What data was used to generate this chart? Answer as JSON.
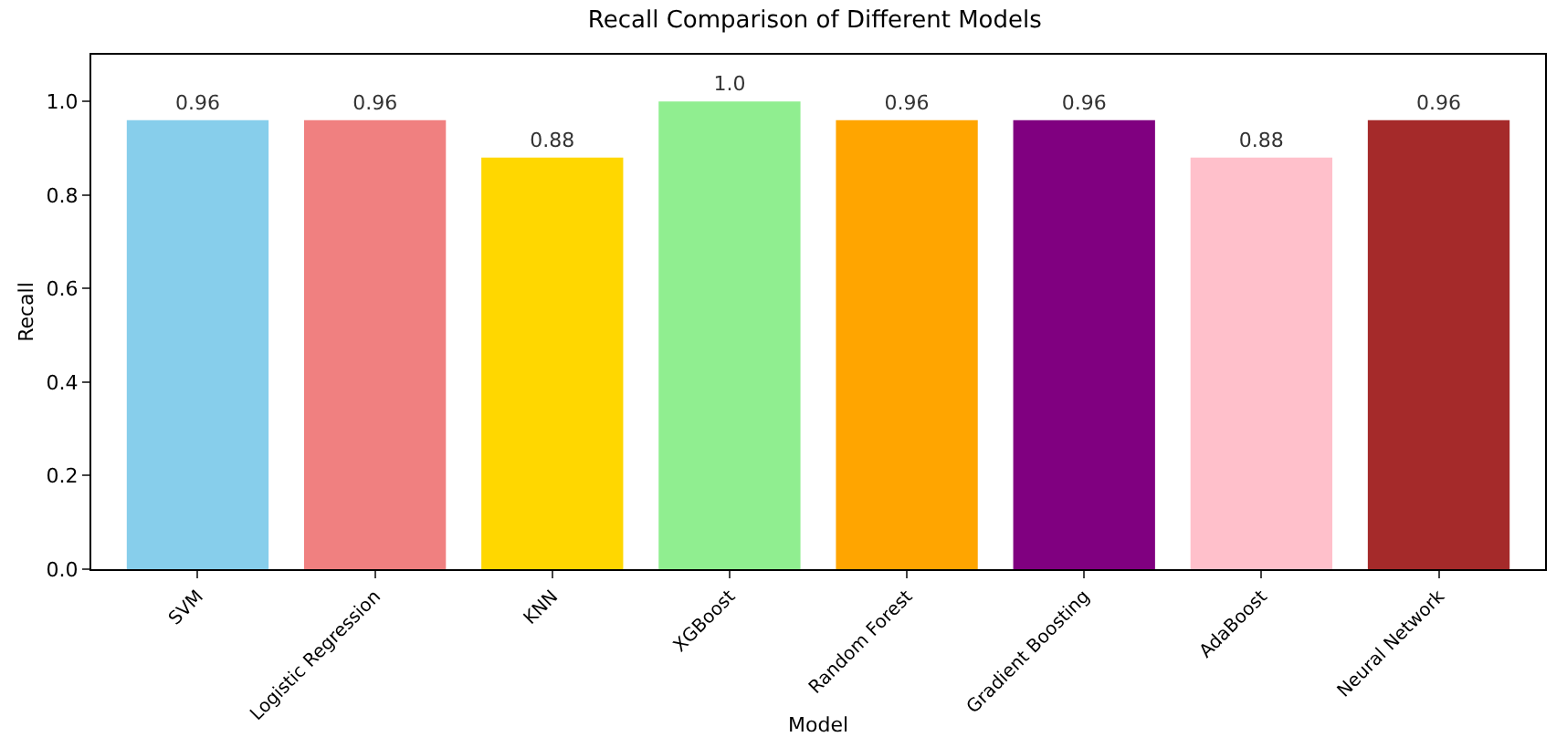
{
  "chart_data": {
    "type": "bar",
    "title": "Recall Comparison of Different Models",
    "xlabel": "Model",
    "ylabel": "Recall",
    "categories": [
      "SVM",
      "Logistic Regression",
      "KNN",
      "XGBoost",
      "Random Forest",
      "Gradient Boosting",
      "AdaBoost",
      "Neural Network"
    ],
    "values": [
      0.96,
      0.96,
      0.88,
      1.0,
      0.96,
      0.96,
      0.88,
      0.96
    ],
    "value_labels": [
      "0.96",
      "0.96",
      "0.88",
      "1.0",
      "0.96",
      "0.96",
      "0.88",
      "0.96"
    ],
    "colors": [
      "#87ceeb",
      "#f08080",
      "#ffd700",
      "#90ee90",
      "#ffa500",
      "#800080",
      "#ffc0cb",
      "#a52a2a"
    ],
    "ylim": [
      0,
      1.1
    ],
    "yticks": [
      {
        "value": 0,
        "label": "0.0"
      },
      {
        "value": 0.2,
        "label": "0.2"
      },
      {
        "value": 0.4,
        "label": "0.4"
      },
      {
        "value": 0.6,
        "label": "0.6"
      },
      {
        "value": 0.8,
        "label": "0.8"
      },
      {
        "value": 1,
        "label": "1.0"
      }
    ],
    "grid": false,
    "legend": false
  }
}
